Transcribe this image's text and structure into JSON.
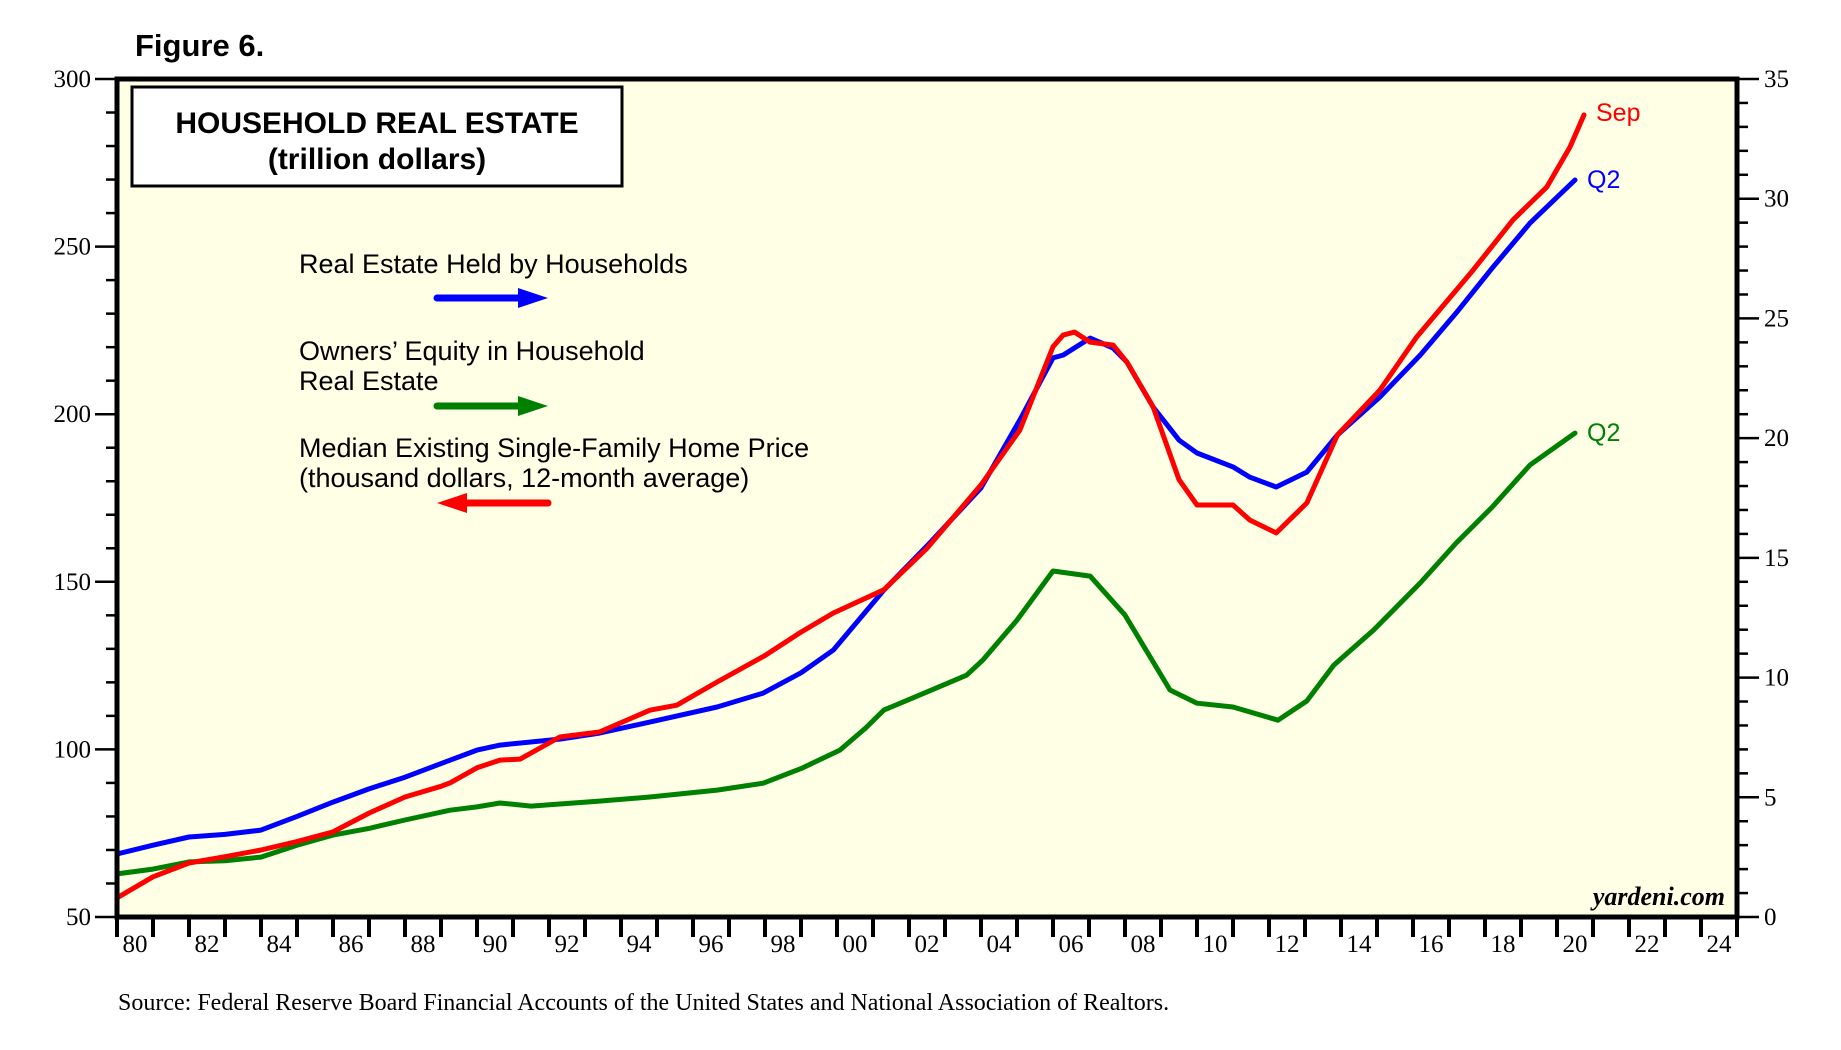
{
  "figure_label": "Figure 6.",
  "source": "Source: Federal Reserve Board Financial Accounts of the United States and National Association of Realtors.",
  "brand": "yardeni.com",
  "colors": {
    "plot_background": "#FFFFE6",
    "real_estate": "#0000FF",
    "owners_equity": "#008000",
    "home_price": "#FF0000"
  },
  "chart_data": {
    "type": "line",
    "title": "HOUSEHOLD REAL ESTATE",
    "subtitle": "(trillion dollars)",
    "xlabel": "",
    "x_range": [
      1980,
      2025
    ],
    "x_tick_labels": [
      "80",
      "82",
      "84",
      "86",
      "88",
      "90",
      "92",
      "94",
      "96",
      "98",
      "00",
      "02",
      "04",
      "06",
      "08",
      "10",
      "12",
      "14",
      "16",
      "18",
      "20",
      "22",
      "24"
    ],
    "x_tick_years": [
      1980,
      1982,
      1984,
      1986,
      1988,
      1990,
      1992,
      1994,
      1996,
      1998,
      2000,
      2002,
      2004,
      2006,
      2008,
      2010,
      2012,
      2014,
      2016,
      2018,
      2020,
      2022,
      2024
    ],
    "y_left": {
      "label": "thousand dollars",
      "range": [
        50,
        300
      ],
      "ticks": [
        50,
        100,
        150,
        200,
        250,
        300
      ],
      "minor_step": 10
    },
    "y_right": {
      "label": "trillion dollars",
      "range": [
        0,
        35
      ],
      "ticks": [
        0,
        5,
        10,
        15,
        20,
        25,
        30,
        35
      ],
      "minor_step": 1
    },
    "grid": false,
    "legend_placement": "top-left",
    "series": [
      {
        "name": "Real Estate Held by Households",
        "axis": "right",
        "color": "#0000FF",
        "end_label": "Q2",
        "x": [
          1980,
          1981,
          1982,
          1983,
          1984,
          1985,
          1986,
          1987,
          1988,
          1989.25,
          1990,
          1990.64,
          1992.3,
          1993.4,
          1994.8,
          1996.67,
          1997.95,
          1999,
          1999.9,
          2001.3,
          2002.5,
          2004,
          2005.08,
          2006,
          2006.28,
          2007.03,
          2007.67,
          2008.05,
          2008.78,
          2009.5,
          2010,
          2011,
          2011.47,
          2012.2,
          2013.05,
          2013.9,
          2015.08,
          2016.2,
          2017.2,
          2018.2,
          2019.25,
          2020.5
        ],
        "values": [
          2.63,
          3.0,
          3.34,
          3.45,
          3.63,
          4.2,
          4.8,
          5.35,
          5.84,
          6.55,
          6.97,
          7.18,
          7.43,
          7.68,
          8.14,
          8.77,
          9.35,
          10.2,
          11.15,
          13.65,
          15.5,
          17.92,
          20.76,
          23.35,
          23.47,
          24.18,
          23.76,
          23.18,
          21.3,
          19.92,
          19.38,
          18.8,
          18.37,
          17.96,
          18.58,
          20.13,
          21.72,
          23.47,
          25.23,
          27.1,
          28.98,
          30.78
        ]
      },
      {
        "name": "Owners’ Equity in Household Real Estate",
        "axis": "right",
        "color": "#008000",
        "end_label": "Q2",
        "x": [
          1980,
          1981,
          1982,
          1983,
          1984,
          1985,
          1986,
          1987,
          1988,
          1989.25,
          1990,
          1990.64,
          1991.5,
          1992.3,
          1993.4,
          1994.8,
          1996.67,
          1997.95,
          1999,
          2000.08,
          2000.8,
          2001.3,
          2002.5,
          2003.6,
          2004.05,
          2005,
          2006,
          2007.03,
          2008,
          2009.25,
          2010,
          2011,
          2012.25,
          2013.05,
          2013.8,
          2014.9,
          2016.2,
          2017.2,
          2018.2,
          2019.25,
          2020.5
        ],
        "values": [
          1.8,
          2.0,
          2.3,
          2.35,
          2.5,
          3.0,
          3.42,
          3.7,
          4.05,
          4.46,
          4.6,
          4.76,
          4.63,
          4.72,
          4.84,
          5.01,
          5.3,
          5.59,
          6.2,
          6.97,
          7.9,
          8.64,
          9.4,
          10.1,
          10.73,
          12.4,
          14.45,
          14.24,
          12.61,
          9.48,
          8.93,
          8.77,
          8.22,
          9.02,
          10.52,
          11.98,
          13.95,
          15.62,
          17.12,
          18.88,
          20.21
        ]
      },
      {
        "name": "Median Existing Single-Family Home Price (thousand dollars, 12-month average)",
        "axis": "left",
        "color": "#FF0000",
        "end_label": "Sep",
        "x": [
          1980,
          1981,
          1982,
          1983,
          1984,
          1985,
          1986,
          1987,
          1988,
          1989,
          1989.25,
          1990,
          1990.64,
          1991.2,
          1992.3,
          1993.4,
          1994.8,
          1995.55,
          1996.67,
          1998,
          1999,
          1999.9,
          2001.3,
          2002.5,
          2004,
          2005.08,
          2006,
          2006.28,
          2006.6,
          2007.03,
          2007.67,
          2008.05,
          2008.78,
          2009.5,
          2010,
          2011,
          2011.47,
          2012.2,
          2013.05,
          2013.9,
          2015.08,
          2016.1,
          2017.67,
          2018.78,
          2019.72,
          2020.36,
          2020.75
        ],
        "values": [
          55.7,
          62,
          66.1,
          68,
          70,
          72.5,
          75.4,
          81,
          85.8,
          89,
          90,
          94.5,
          96.8,
          97.1,
          103.7,
          105.2,
          111.7,
          113.2,
          120.1,
          128,
          135,
          140.7,
          147.6,
          160,
          178.9,
          195.3,
          220.1,
          223.6,
          224.5,
          221.5,
          220.6,
          215.6,
          202.2,
          180.5,
          172.9,
          172.9,
          168.4,
          164.6,
          173.5,
          193.8,
          207.2,
          223,
          243,
          258,
          267.8,
          279.7,
          289.3
        ]
      }
    ],
    "legend": [
      {
        "lines": [
          "Real Estate Held by Households"
        ],
        "arrow": "right",
        "color": "#0000FF"
      },
      {
        "lines": [
          "Owners’ Equity in Household",
          "Real Estate"
        ],
        "arrow": "right",
        "color": "#008000"
      },
      {
        "lines": [
          "Median Existing Single-Family Home Price",
          "(thousand dollars, 12-month average)"
        ],
        "arrow": "left",
        "color": "#FF0000"
      }
    ]
  }
}
